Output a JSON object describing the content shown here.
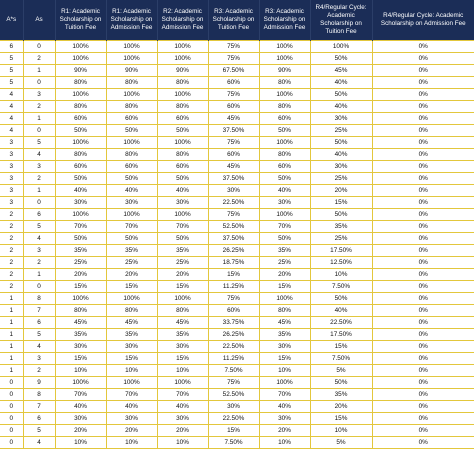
{
  "headers": [
    "A*s",
    "As",
    "R1: Academic Scholarship on Tuition Fee",
    "R1: Academic Scholarship on Admission Fee",
    "R2: Academic Scholarship on Admission Fee",
    "R3: Academic Scholarship on Tuition Fee",
    "R3: Academic Scholarship on Admission Fee",
    "R4/Regular Cycle: Academic Scholarship on Tuition Fee",
    "R4/Regular Cycle: Academic Scholarship on Admission Fee"
  ],
  "rows": [
    [
      "6",
      "0",
      "100%",
      "100%",
      "100%",
      "75%",
      "100%",
      "100%",
      "0%"
    ],
    [
      "5",
      "2",
      "100%",
      "100%",
      "100%",
      "75%",
      "100%",
      "50%",
      "0%"
    ],
    [
      "5",
      "1",
      "90%",
      "90%",
      "90%",
      "67.50%",
      "90%",
      "45%",
      "0%"
    ],
    [
      "5",
      "0",
      "80%",
      "80%",
      "80%",
      "60%",
      "80%",
      "40%",
      "0%"
    ],
    [
      "4",
      "3",
      "100%",
      "100%",
      "100%",
      "75%",
      "100%",
      "50%",
      "0%"
    ],
    [
      "4",
      "2",
      "80%",
      "80%",
      "80%",
      "60%",
      "80%",
      "40%",
      "0%"
    ],
    [
      "4",
      "1",
      "60%",
      "60%",
      "60%",
      "45%",
      "60%",
      "30%",
      "0%"
    ],
    [
      "4",
      "0",
      "50%",
      "50%",
      "50%",
      "37.50%",
      "50%",
      "25%",
      "0%"
    ],
    [
      "3",
      "5",
      "100%",
      "100%",
      "100%",
      "75%",
      "100%",
      "50%",
      "0%"
    ],
    [
      "3",
      "4",
      "80%",
      "80%",
      "80%",
      "60%",
      "80%",
      "40%",
      "0%"
    ],
    [
      "3",
      "3",
      "60%",
      "60%",
      "60%",
      "45%",
      "60%",
      "30%",
      "0%"
    ],
    [
      "3",
      "2",
      "50%",
      "50%",
      "50%",
      "37.50%",
      "50%",
      "25%",
      "0%"
    ],
    [
      "3",
      "1",
      "40%",
      "40%",
      "40%",
      "30%",
      "40%",
      "20%",
      "0%"
    ],
    [
      "3",
      "0",
      "30%",
      "30%",
      "30%",
      "22.50%",
      "30%",
      "15%",
      "0%"
    ],
    [
      "2",
      "6",
      "100%",
      "100%",
      "100%",
      "75%",
      "100%",
      "50%",
      "0%"
    ],
    [
      "2",
      "5",
      "70%",
      "70%",
      "70%",
      "52.50%",
      "70%",
      "35%",
      "0%"
    ],
    [
      "2",
      "4",
      "50%",
      "50%",
      "50%",
      "37.50%",
      "50%",
      "25%",
      "0%"
    ],
    [
      "2",
      "3",
      "35%",
      "35%",
      "35%",
      "26.25%",
      "35%",
      "17.50%",
      "0%"
    ],
    [
      "2",
      "2",
      "25%",
      "25%",
      "25%",
      "18.75%",
      "25%",
      "12.50%",
      "0%"
    ],
    [
      "2",
      "1",
      "20%",
      "20%",
      "20%",
      "15%",
      "20%",
      "10%",
      "0%"
    ],
    [
      "2",
      "0",
      "15%",
      "15%",
      "15%",
      "11.25%",
      "15%",
      "7.50%",
      "0%"
    ],
    [
      "1",
      "8",
      "100%",
      "100%",
      "100%",
      "75%",
      "100%",
      "50%",
      "0%"
    ],
    [
      "1",
      "7",
      "80%",
      "80%",
      "80%",
      "60%",
      "80%",
      "40%",
      "0%"
    ],
    [
      "1",
      "6",
      "45%",
      "45%",
      "45%",
      "33.75%",
      "45%",
      "22.50%",
      "0%"
    ],
    [
      "1",
      "5",
      "35%",
      "35%",
      "35%",
      "26.25%",
      "35%",
      "17.50%",
      "0%"
    ],
    [
      "1",
      "4",
      "30%",
      "30%",
      "30%",
      "22.50%",
      "30%",
      "15%",
      "0%"
    ],
    [
      "1",
      "3",
      "15%",
      "15%",
      "15%",
      "11.25%",
      "15%",
      "7.50%",
      "0%"
    ],
    [
      "1",
      "2",
      "10%",
      "10%",
      "10%",
      "7.50%",
      "10%",
      "5%",
      "0%"
    ],
    [
      "0",
      "9",
      "100%",
      "100%",
      "100%",
      "75%",
      "100%",
      "50%",
      "0%"
    ],
    [
      "0",
      "8",
      "70%",
      "70%",
      "70%",
      "52.50%",
      "70%",
      "35%",
      "0%"
    ],
    [
      "0",
      "7",
      "40%",
      "40%",
      "40%",
      "30%",
      "40%",
      "20%",
      "0%"
    ],
    [
      "0",
      "6",
      "30%",
      "30%",
      "30%",
      "22.50%",
      "30%",
      "15%",
      "0%"
    ],
    [
      "0",
      "5",
      "20%",
      "20%",
      "20%",
      "15%",
      "20%",
      "10%",
      "0%"
    ],
    [
      "0",
      "4",
      "10%",
      "10%",
      "10%",
      "7.50%",
      "10%",
      "5%",
      "0%"
    ]
  ]
}
